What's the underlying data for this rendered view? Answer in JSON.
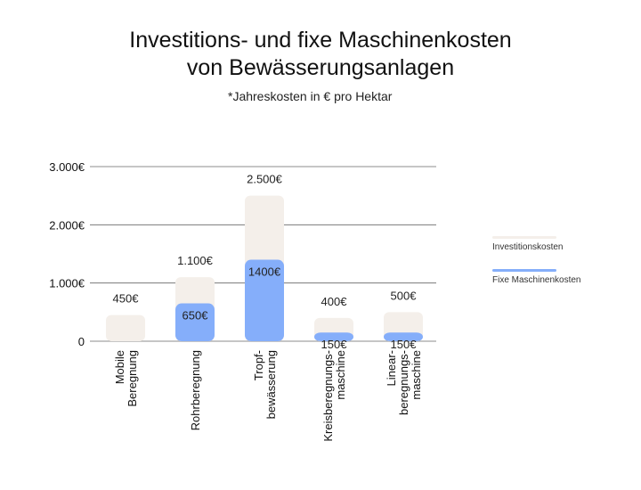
{
  "title_line1": "Investitions- und fixe Maschinenkosten",
  "title_line2": "von Bewässerungsanlagen",
  "subtitle": "*Jahreskosten in € pro Hektar",
  "colors": {
    "investition": "#f4efea",
    "fixe": "#85aefa",
    "grid": "#666666",
    "text": "#111111"
  },
  "legend": [
    {
      "label": "Investitionskosten",
      "color": "#f4efea"
    },
    {
      "label": "Fixe Maschinenkosten",
      "color": "#85aefa"
    }
  ],
  "chart_data": {
    "type": "bar",
    "categories": [
      [
        "Mobile",
        "Beregnung"
      ],
      [
        "Rohrberegnung"
      ],
      [
        "Tropf-",
        "bewässerung"
      ],
      [
        "Kreisberegnungs-",
        "maschine"
      ],
      [
        "Linear-",
        "beregnungs-",
        "maschine"
      ]
    ],
    "series": [
      {
        "name": "Investitionskosten",
        "values": [
          450,
          1100,
          2500,
          400,
          500
        ],
        "labels": [
          "450€",
          "1.100€",
          "2.500€",
          "400€",
          "500€"
        ]
      },
      {
        "name": "Fixe Maschinenkosten",
        "values": [
          0,
          650,
          1400,
          150,
          150
        ],
        "labels": [
          "",
          "650€",
          "1400€",
          "150€",
          "150€"
        ]
      }
    ],
    "ylim": [
      0,
      3000
    ],
    "yticks": [
      0,
      1000,
      2000,
      3000
    ],
    "ytick_labels": [
      "0",
      "1.000€",
      "2.000€",
      "3.000€"
    ],
    "grid": true,
    "legend_position": "right",
    "overlapping": true
  }
}
